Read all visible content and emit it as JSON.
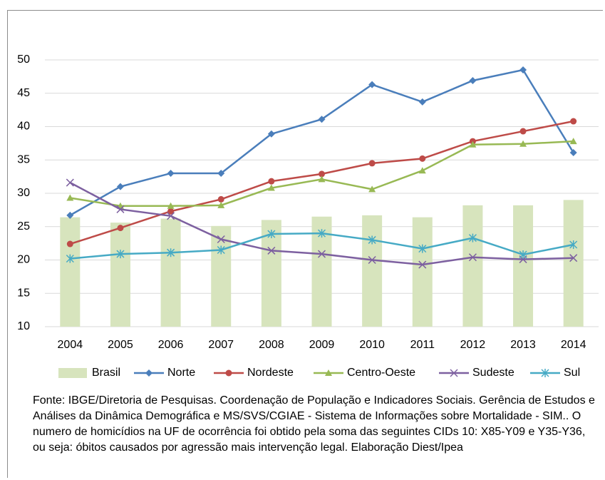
{
  "chart_data": {
    "type": "line",
    "categories": [
      "2004",
      "2005",
      "2006",
      "2007",
      "2008",
      "2009",
      "2010",
      "2011",
      "2012",
      "2013",
      "2014"
    ],
    "series": [
      {
        "name": "Brasil",
        "type": "bar",
        "color": "#d7e4bd",
        "values": [
          26.4,
          25.6,
          26.2,
          25.1,
          26.0,
          26.5,
          26.7,
          26.4,
          28.2,
          28.2,
          29.0
        ]
      },
      {
        "name": "Norte",
        "type": "line",
        "marker": "diamond",
        "color": "#4a7ebb",
        "values": [
          26.7,
          31.0,
          33.0,
          33.0,
          38.9,
          41.1,
          46.3,
          43.7,
          46.9,
          48.5,
          36.1
        ]
      },
      {
        "name": "Nordeste",
        "type": "line",
        "marker": "circle",
        "color": "#be4b48",
        "values": [
          22.4,
          24.8,
          27.3,
          29.1,
          31.8,
          32.9,
          34.5,
          35.2,
          37.8,
          39.3,
          40.8
        ]
      },
      {
        "name": "Centro-Oeste",
        "type": "line",
        "marker": "triangle",
        "color": "#98b954",
        "values": [
          29.3,
          28.1,
          28.1,
          28.2,
          30.8,
          32.1,
          30.6,
          33.4,
          37.3,
          37.4,
          37.8
        ]
      },
      {
        "name": "Sudeste",
        "type": "line",
        "marker": "x",
        "color": "#7d60a0",
        "values": [
          31.6,
          27.6,
          26.6,
          23.1,
          21.4,
          20.9,
          20.0,
          19.3,
          20.4,
          20.1,
          20.3
        ]
      },
      {
        "name": "Sul",
        "type": "line",
        "marker": "star",
        "color": "#46aac5",
        "values": [
          20.2,
          20.9,
          21.1,
          21.5,
          23.9,
          24.0,
          23.0,
          21.7,
          23.3,
          20.8,
          22.3
        ]
      }
    ],
    "ylim": [
      10,
      50
    ],
    "yticks": [
      10,
      15,
      20,
      25,
      30,
      35,
      40,
      45,
      50
    ],
    "grid": true,
    "legend": "bottom",
    "note": "Fonte: IBGE/Diretoria de Pesquisas. Coordenação de População e Indicadores Sociais. Gerência de Estudos e Análises da Dinâmica Demográfica e MS/SVS/CGIAE - Sistema de Informações sobre Mortalidade - SIM.. O numero de homicídios na UF de ocorrência foi obtido pela soma das seguintes CIDs 10: X85-Y09 e Y35-Y36, ou seja: óbitos causados por agressão mais intervenção legal. Elaboração Diest/Ipea"
  }
}
